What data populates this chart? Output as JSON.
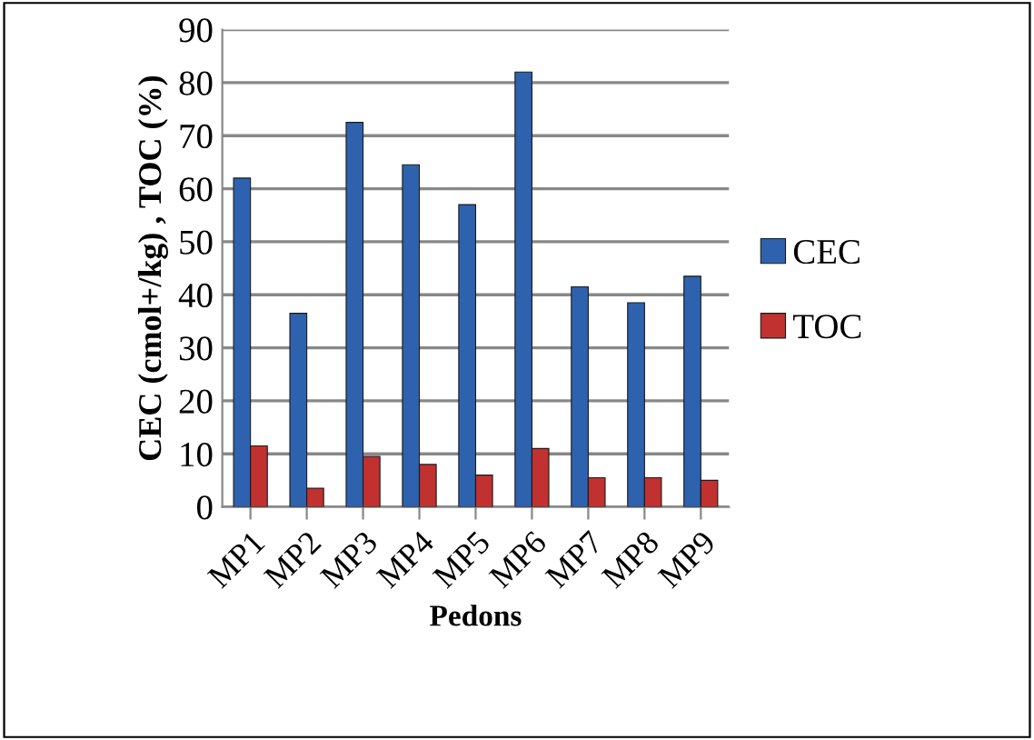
{
  "chart_data": {
    "type": "bar",
    "xlabel": "Pedons",
    "ylabel": "CEC (cmol+/kg) , TOC (%)",
    "categories": [
      "MP1",
      "MP2",
      "MP3",
      "MP4",
      "MP5",
      "MP6",
      "MP7",
      "MP8",
      "MP9"
    ],
    "series": [
      {
        "name": "CEC",
        "color": "#2e62ae",
        "values": [
          62,
          36.5,
          72.5,
          64.5,
          57,
          82,
          41.5,
          38.5,
          43.5
        ]
      },
      {
        "name": "TOC",
        "color": "#c0312f",
        "values": [
          11.5,
          3.5,
          9.5,
          8,
          6,
          11,
          5.5,
          5.5,
          5
        ]
      }
    ],
    "ylim": [
      0,
      90
    ],
    "yticks": [
      0,
      10,
      20,
      30,
      40,
      50,
      60,
      70,
      80,
      90
    ],
    "grid": "y",
    "legend": "right"
  }
}
